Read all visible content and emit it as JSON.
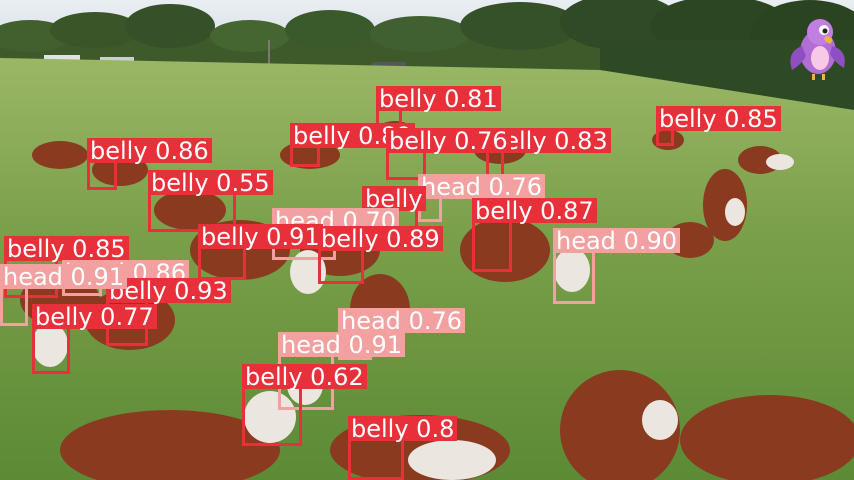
{
  "detections": [
    {
      "cls": "belly",
      "label": "belly 0.81"
    },
    {
      "cls": "belly",
      "label": "belly 0.85"
    },
    {
      "cls": "belly",
      "label": "belly 0.86"
    },
    {
      "cls": "belly",
      "label": "belly 0.89"
    },
    {
      "cls": "belly",
      "label": "belly 0.83"
    },
    {
      "cls": "belly",
      "label": "belly 0.76"
    },
    {
      "cls": "belly",
      "label": "belly 0.55"
    },
    {
      "cls": "head",
      "label": "head 0.76"
    },
    {
      "cls": "belly",
      "label": "belly"
    },
    {
      "cls": "head",
      "label": "head 0.70"
    },
    {
      "cls": "belly",
      "label": "belly 0.87"
    },
    {
      "cls": "belly",
      "label": "belly 0.91"
    },
    {
      "cls": "belly",
      "label": "belly 0.89"
    },
    {
      "cls": "head",
      "label": "head 0.90"
    },
    {
      "cls": "belly",
      "label": "belly 0.85"
    },
    {
      "cls": "head",
      "label": "head 0.86"
    },
    {
      "cls": "belly",
      "label": "belly 0.93"
    },
    {
      "cls": "head",
      "label": "head 0.91"
    },
    {
      "cls": "belly",
      "label": "belly 0.77"
    },
    {
      "cls": "head",
      "label": "head 0.76"
    },
    {
      "cls": "head",
      "label": "head 0.91"
    },
    {
      "cls": "belly",
      "label": "belly 0.62"
    },
    {
      "cls": "belly",
      "label": "belly 0.8"
    }
  ]
}
